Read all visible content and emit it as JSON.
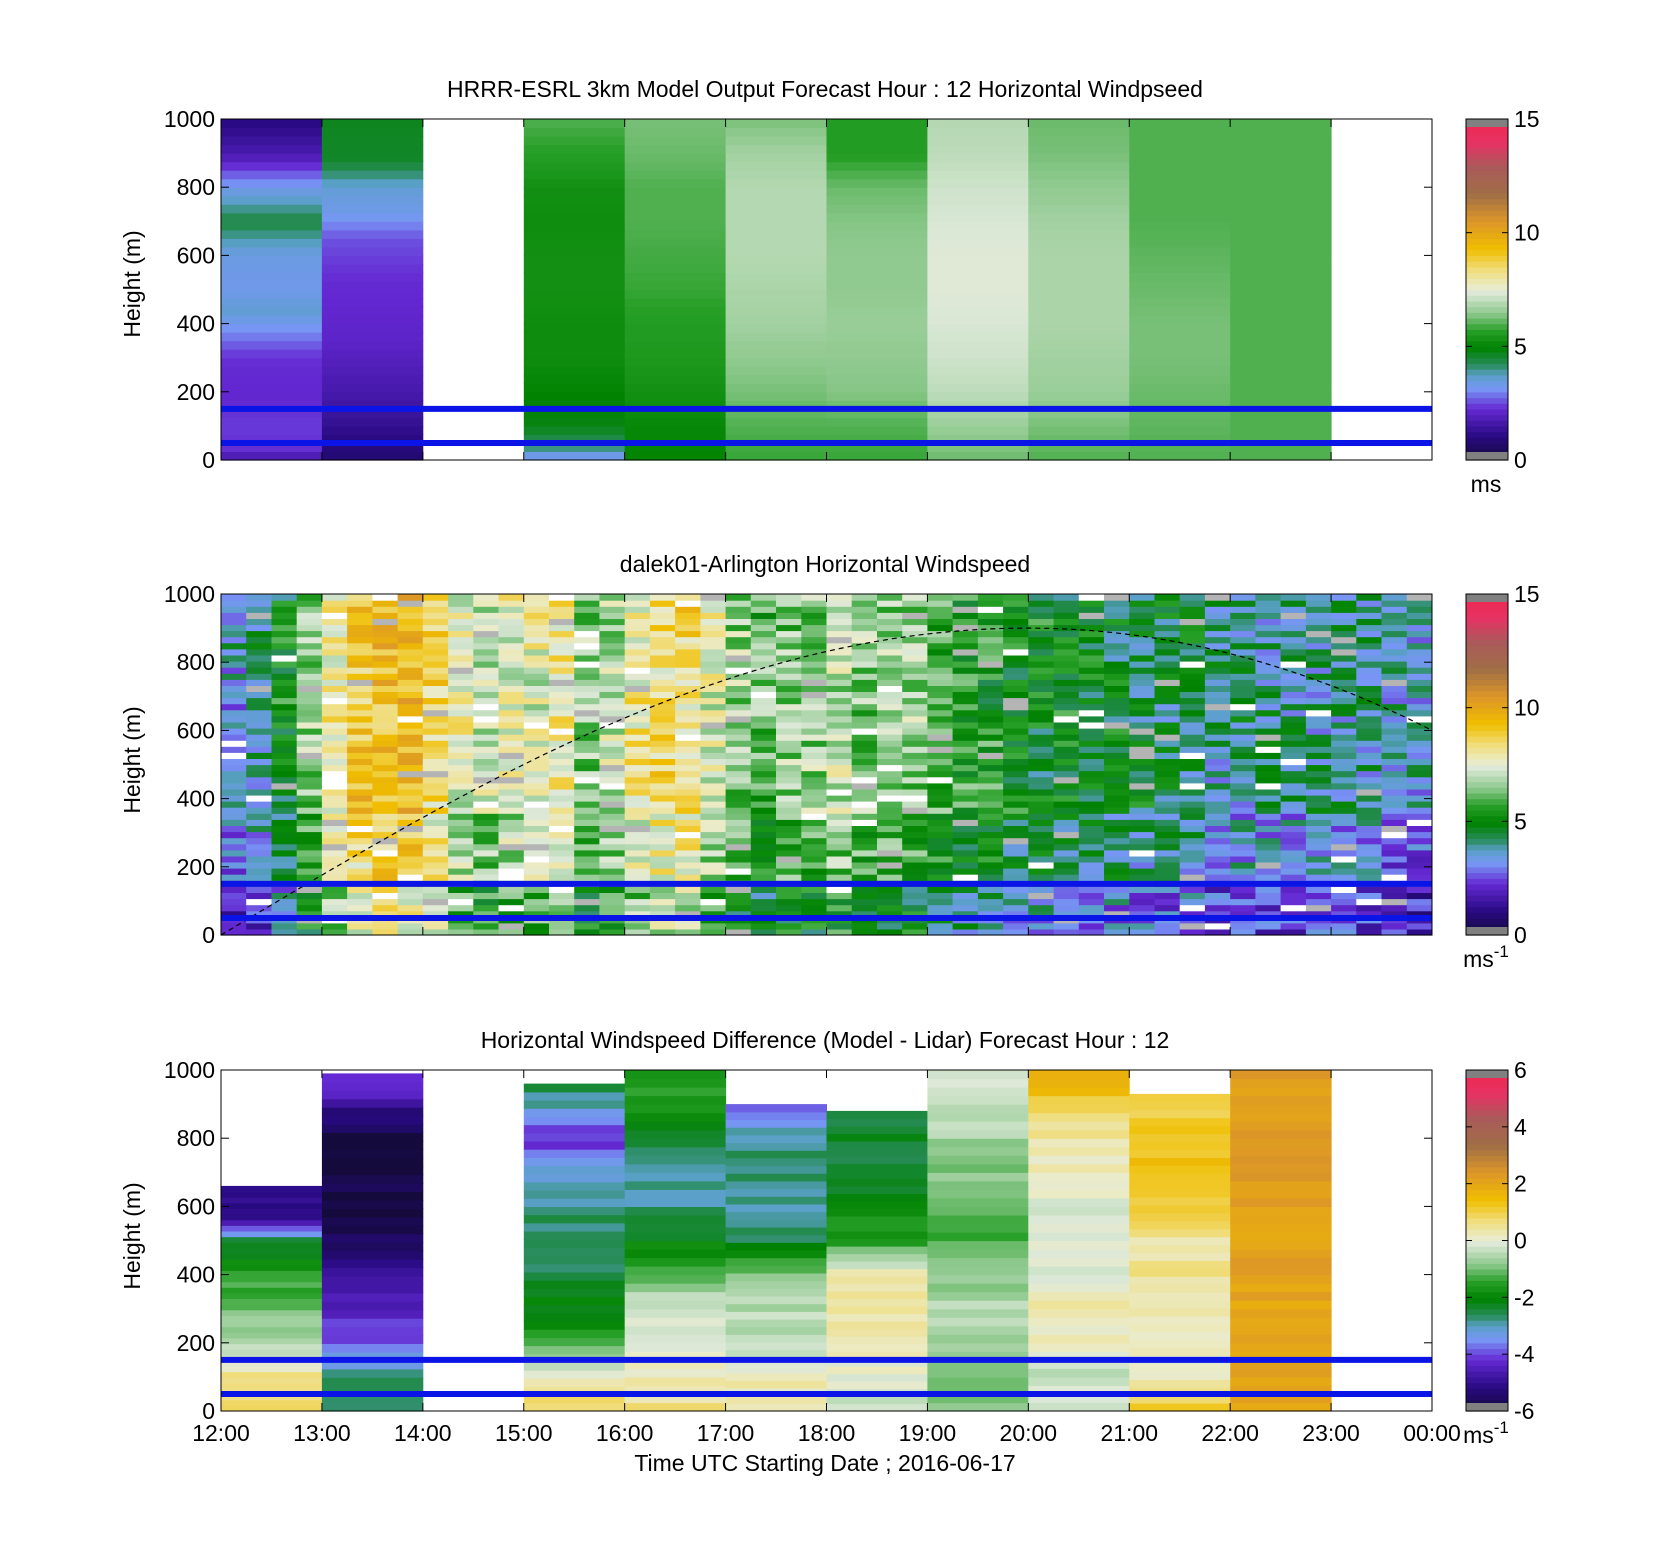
{
  "figure": {
    "xlabel": "Time UTC  Starting Date ; 2016-06-17",
    "x_ticks": [
      "12:00",
      "13:00",
      "14:00",
      "15:00",
      "16:00",
      "17:00",
      "18:00",
      "19:00",
      "20:00",
      "21:00",
      "22:00",
      "23:00",
      "00:00"
    ],
    "bar_lines_m": [
      150,
      50
    ],
    "line_color": "#0a14e6"
  },
  "chart_data": [
    {
      "type": "heatmap",
      "title": "HRRR-ESRL 3km Model Output   Forecast Hour : 12 Horizontal Windpseed",
      "ylabel": "Height (m)",
      "ylim": [
        0,
        1000
      ],
      "y_ticks": [
        "0",
        "200",
        "400",
        "600",
        "800",
        "1000"
      ],
      "xlim_hours": [
        0,
        12
      ],
      "colorbar": {
        "ticks": [
          "0",
          "5",
          "10",
          "15"
        ],
        "unit": "ms",
        "range": [
          0,
          15
        ]
      },
      "columns": [
        {
          "hour": 0,
          "profile": [
            [
              0,
              1.5
            ],
            [
              30,
              2.3
            ],
            [
              100,
              2.4
            ],
            [
              200,
              2.2
            ],
            [
              300,
              2.3
            ],
            [
              380,
              3.1
            ],
            [
              440,
              3.6
            ],
            [
              500,
              3.3
            ],
            [
              600,
              3.4
            ],
            [
              700,
              4.4
            ],
            [
              800,
              3.3
            ],
            [
              900,
              1.7
            ],
            [
              1000,
              1.0
            ]
          ]
        },
        {
          "hour": 1,
          "profile": [
            [
              0,
              0.8
            ],
            [
              50,
              1.0
            ],
            [
              150,
              1.5
            ],
            [
              250,
              1.8
            ],
            [
              350,
              2.1
            ],
            [
              450,
              2.2
            ],
            [
              550,
              2.3
            ],
            [
              650,
              2.6
            ],
            [
              720,
              3.3
            ],
            [
              800,
              3.6
            ],
            [
              880,
              4.6
            ],
            [
              1000,
              4.7
            ]
          ]
        },
        {
          "hour": 3,
          "profile": [
            [
              0,
              3.0
            ],
            [
              40,
              4.1
            ],
            [
              100,
              4.8
            ],
            [
              200,
              5.0
            ],
            [
              300,
              5.2
            ],
            [
              400,
              5.2
            ],
            [
              500,
              5.3
            ],
            [
              600,
              5.3
            ],
            [
              700,
              5.2
            ],
            [
              800,
              5.3
            ],
            [
              880,
              5.6
            ],
            [
              1000,
              6.0
            ]
          ]
        },
        {
          "hour": 4,
          "profile": [
            [
              0,
              5.0
            ],
            [
              100,
              5.1
            ],
            [
              200,
              5.3
            ],
            [
              300,
              5.5
            ],
            [
              400,
              5.6
            ],
            [
              500,
              5.8
            ],
            [
              600,
              5.9
            ],
            [
              700,
              6.0
            ],
            [
              800,
              6.0
            ],
            [
              900,
              6.2
            ],
            [
              1000,
              6.3
            ]
          ]
        },
        {
          "hour": 5,
          "profile": [
            [
              0,
              5.8
            ],
            [
              100,
              6.0
            ],
            [
              200,
              6.3
            ],
            [
              300,
              6.5
            ],
            [
              400,
              6.7
            ],
            [
              500,
              6.8
            ],
            [
              600,
              6.9
            ],
            [
              700,
              6.9
            ],
            [
              800,
              6.9
            ],
            [
              900,
              6.7
            ],
            [
              1000,
              6.3
            ]
          ]
        },
        {
          "hour": 6,
          "profile": [
            [
              0,
              5.8
            ],
            [
              100,
              6.0
            ],
            [
              200,
              6.4
            ],
            [
              300,
              6.5
            ],
            [
              400,
              6.6
            ],
            [
              500,
              6.5
            ],
            [
              600,
              6.5
            ],
            [
              700,
              6.4
            ],
            [
              800,
              6.2
            ],
            [
              900,
              5.6
            ],
            [
              1000,
              5.6
            ]
          ]
        },
        {
          "hour": 7,
          "profile": [
            [
              0,
              6.2
            ],
            [
              100,
              6.6
            ],
            [
              200,
              7.0
            ],
            [
              300,
              7.2
            ],
            [
              400,
              7.3
            ],
            [
              500,
              7.4
            ],
            [
              600,
              7.4
            ],
            [
              700,
              7.3
            ],
            [
              800,
              7.2
            ],
            [
              900,
              7.0
            ],
            [
              1000,
              6.9
            ]
          ]
        },
        {
          "hour": 8,
          "profile": [
            [
              0,
              6.0
            ],
            [
              100,
              6.3
            ],
            [
              200,
              6.6
            ],
            [
              300,
              6.7
            ],
            [
              400,
              6.8
            ],
            [
              500,
              6.8
            ],
            [
              600,
              6.8
            ],
            [
              700,
              6.7
            ],
            [
              800,
              6.5
            ],
            [
              900,
              6.3
            ],
            [
              1000,
              6.2
            ]
          ]
        },
        {
          "hour": 9,
          "profile": [
            [
              0,
              6.0
            ],
            [
              100,
              6.1
            ],
            [
              200,
              6.2
            ],
            [
              300,
              6.3
            ],
            [
              400,
              6.3
            ],
            [
              500,
              6.2
            ],
            [
              600,
              6.1
            ],
            [
              700,
              6.0
            ],
            [
              800,
              6.0
            ],
            [
              900,
              6.0
            ],
            [
              1000,
              6.0
            ]
          ]
        },
        {
          "hour": 10,
          "profile": [
            [
              0,
              6.0
            ],
            [
              100,
              6.0
            ],
            [
              200,
              6.0
            ],
            [
              300,
              6.0
            ],
            [
              400,
              6.0
            ],
            [
              500,
              6.0
            ],
            [
              600,
              6.0
            ],
            [
              700,
              6.0
            ],
            [
              800,
              6.0
            ],
            [
              900,
              6.0
            ],
            [
              1000,
              6.0
            ]
          ]
        }
      ]
    },
    {
      "type": "heatmap",
      "title": "dalek01-Arlington  Horizontal Windspeed",
      "ylabel": "Height (m)",
      "ylim": [
        0,
        1000
      ],
      "y_ticks": [
        "0",
        "200",
        "400",
        "600",
        "800",
        "1000"
      ],
      "xlim_hours": [
        0,
        12
      ],
      "colorbar": {
        "ticks": [
          "0",
          "5",
          "10",
          "15"
        ],
        "unit": "ms-1",
        "range": [
          0,
          15
        ]
      },
      "column_width_hours": 0.25,
      "columns_mean_speed": [
        3.5,
        4.0,
        5.0,
        6.5,
        8.0,
        9.0,
        9.5,
        9.5,
        8.5,
        7.5,
        7.0,
        7.5,
        7.5,
        8.0,
        6.5,
        7.0,
        8.0,
        8.5,
        8.5,
        7.5,
        6.5,
        6.0,
        6.5,
        6.5,
        7.0,
        6.5,
        6.5,
        6.5,
        6.0,
        5.5,
        5.5,
        5.0,
        5.0,
        5.0,
        4.8,
        4.8,
        4.5,
        4.5,
        4.5,
        4.0,
        4.0,
        4.0,
        4.0,
        4.0,
        4.0,
        4.0,
        3.5,
        3.5
      ],
      "curve": {
        "type": "dashed",
        "peak_hour": 8,
        "peak_height_m": 900,
        "end_height_m": 600
      }
    },
    {
      "type": "heatmap",
      "title": "Horizontal Windspeed Difference (Model - Lidar) Forecast Hour : 12",
      "ylabel": "Height (m)",
      "ylim": [
        0,
        1000
      ],
      "y_ticks": [
        "0",
        "200",
        "400",
        "600",
        "800",
        "1000"
      ],
      "xlim_hours": [
        0,
        12
      ],
      "colorbar": {
        "ticks": [
          "-6",
          "-4",
          "-2",
          "0",
          "2",
          "4",
          "6"
        ],
        "unit": "ms-1",
        "range": [
          -6,
          6
        ]
      },
      "columns": [
        {
          "hour": 0,
          "top_m": 660,
          "profile": [
            [
              0,
              0.8
            ],
            [
              100,
              0.6
            ],
            [
              180,
              -0.5
            ],
            [
              300,
              -1.0
            ],
            [
              400,
              -1.5
            ],
            [
              500,
              -2.5
            ],
            [
              560,
              -5.0
            ],
            [
              660,
              -5.0
            ]
          ]
        },
        {
          "hour": 1,
          "top_m": 990,
          "profile": [
            [
              0,
              -2.5
            ],
            [
              100,
              -2.8
            ],
            [
              200,
              -3.8
            ],
            [
              300,
              -4.5
            ],
            [
              400,
              -4.8
            ],
            [
              480,
              -5.5
            ],
            [
              560,
              -6.0
            ],
            [
              650,
              -5.8
            ],
            [
              700,
              -6.0
            ],
            [
              800,
              -6.0
            ],
            [
              900,
              -5.0
            ],
            [
              970,
              -4.0
            ],
            [
              990,
              -4.0
            ]
          ]
        },
        {
          "hour": 3,
          "top_m": 960,
          "profile": [
            [
              0,
              1.0
            ],
            [
              60,
              0.5
            ],
            [
              150,
              -0.6
            ],
            [
              250,
              -1.8
            ],
            [
              400,
              -2.5
            ],
            [
              600,
              -2.7
            ],
            [
              700,
              -3.0
            ],
            [
              800,
              -4.2
            ],
            [
              850,
              -3.8
            ],
            [
              900,
              -2.8
            ],
            [
              960,
              -2.6
            ]
          ]
        },
        {
          "hour": 4,
          "top_m": 1000,
          "profile": [
            [
              0,
              0.6
            ],
            [
              100,
              0.2
            ],
            [
              300,
              -0.2
            ],
            [
              400,
              -1.2
            ],
            [
              500,
              -2.0
            ],
            [
              600,
              -2.8
            ],
            [
              700,
              -2.8
            ],
            [
              800,
              -2.3
            ],
            [
              900,
              -1.8
            ],
            [
              960,
              -1.5
            ],
            [
              980,
              -1.5
            ],
            [
              1000,
              -1.6
            ]
          ]
        },
        {
          "hour": 5,
          "top_m": 900,
          "profile": [
            [
              0,
              0.3
            ],
            [
              100,
              0.2
            ],
            [
              200,
              -0.3
            ],
            [
              300,
              -0.5
            ],
            [
              400,
              -0.8
            ],
            [
              450,
              -1.5
            ],
            [
              500,
              -2.5
            ],
            [
              600,
              -2.8
            ],
            [
              700,
              -2.6
            ],
            [
              800,
              -2.8
            ],
            [
              870,
              -3.8
            ],
            [
              900,
              -3.9
            ]
          ]
        },
        {
          "hour": 6,
          "top_m": 880,
          "profile": [
            [
              0,
              -0.2
            ],
            [
              100,
              -0.1
            ],
            [
              200,
              0.3
            ],
            [
              300,
              0.4
            ],
            [
              400,
              0.2
            ],
            [
              450,
              -0.5
            ],
            [
              500,
              -1.5
            ],
            [
              600,
              -2.0
            ],
            [
              700,
              -2.5
            ],
            [
              800,
              -2.4
            ],
            [
              880,
              -2.4
            ]
          ]
        },
        {
          "hour": 7,
          "top_m": 1000,
          "profile": [
            [
              0,
              -1.0
            ],
            [
              100,
              -1.0
            ],
            [
              200,
              -0.7
            ],
            [
              300,
              -0.5
            ],
            [
              400,
              -0.8
            ],
            [
              500,
              -1.2
            ],
            [
              600,
              -1.1
            ],
            [
              700,
              -0.9
            ],
            [
              800,
              -0.6
            ],
            [
              900,
              -0.3
            ],
            [
              1000,
              -0.2
            ]
          ]
        },
        {
          "hour": 8,
          "top_m": 1000,
          "profile": [
            [
              0,
              -0.3
            ],
            [
              100,
              -0.3
            ],
            [
              200,
              0.2
            ],
            [
              300,
              0.3
            ],
            [
              400,
              0.0
            ],
            [
              500,
              0.1
            ],
            [
              600,
              -0.1
            ],
            [
              700,
              0.2
            ],
            [
              800,
              0.4
            ],
            [
              900,
              1.0
            ],
            [
              1000,
              2.0
            ]
          ]
        },
        {
          "hour": 9,
          "top_m": 930,
          "profile": [
            [
              0,
              1.2
            ],
            [
              100,
              0.2
            ],
            [
              200,
              0.0
            ],
            [
              300,
              0.2
            ],
            [
              400,
              0.5
            ],
            [
              500,
              0.4
            ],
            [
              600,
              1.0
            ],
            [
              700,
              1.4
            ],
            [
              800,
              1.2
            ],
            [
              900,
              0.9
            ],
            [
              930,
              0.9
            ]
          ]
        },
        {
          "hour": 10,
          "top_m": 1000,
          "profile": [
            [
              0,
              2.0
            ],
            [
              100,
              2.0
            ],
            [
              200,
              2.0
            ],
            [
              300,
              2.0
            ],
            [
              400,
              2.1
            ],
            [
              500,
              2.1
            ],
            [
              600,
              2.2
            ],
            [
              700,
              2.2
            ],
            [
              800,
              2.2
            ],
            [
              900,
              2.2
            ],
            [
              1000,
              2.3
            ]
          ]
        }
      ]
    }
  ]
}
